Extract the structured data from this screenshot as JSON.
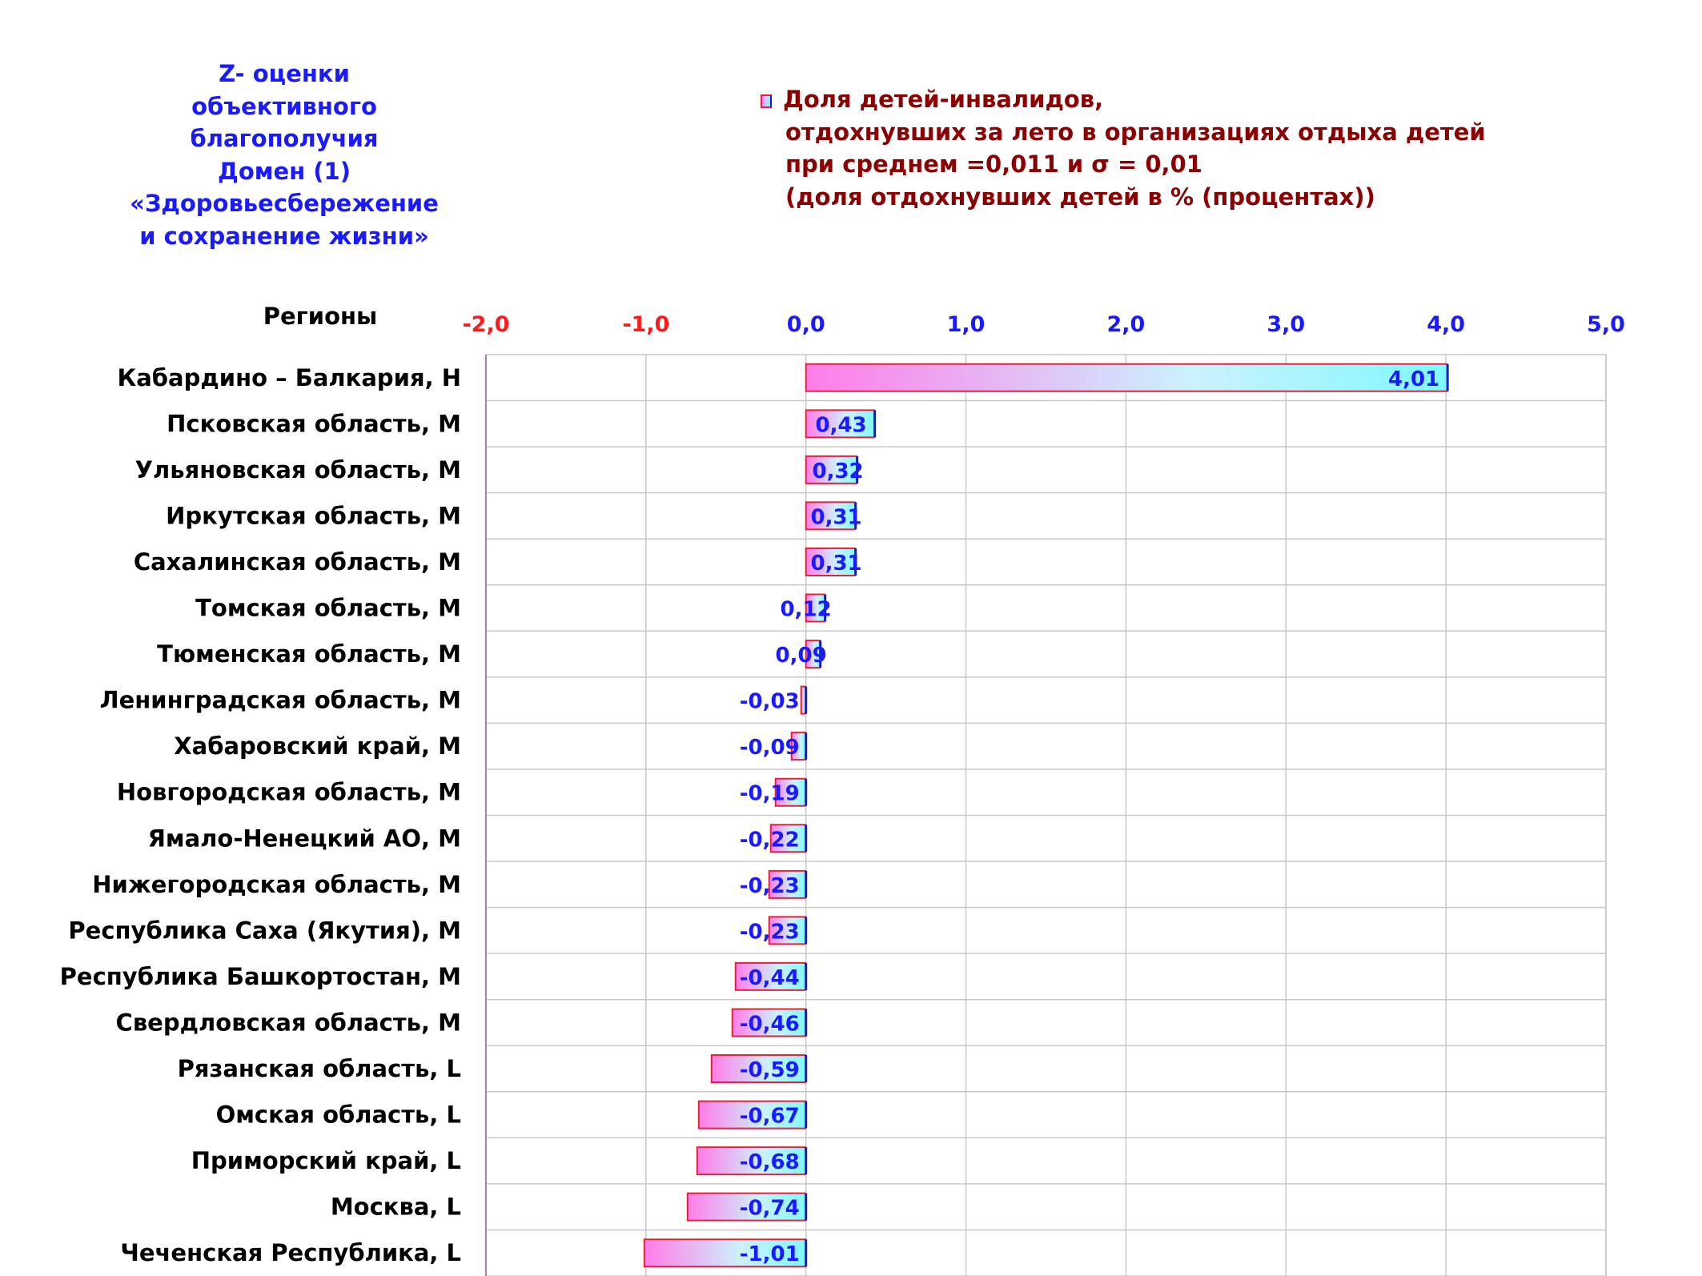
{
  "domain_title": "Z- оценки\nобъективного\nблагополучия\nДомен (1)\n«Здоровьесбережение\nи сохранение жизни»",
  "legend": {
    "line1": "Доля детей-инвалидов,",
    "line2": "отдохнувших за лето в организациях отдыха детей",
    "line3": "при среднем =0,011  и σ = 0,01",
    "line4": "(доля отдохнувших детей в % (процентах))"
  },
  "colors": {
    "axis_negative": "#ff1a1a",
    "axis_positive": "#1a1aff",
    "bar_border_left": "#e8213a",
    "bar_border_right": "#1515c8",
    "gradient_start": "#ff7ce8",
    "gradient_end": "#7ff8ff",
    "value_label": "#1a1aff",
    "grid": "#c8c8c8"
  },
  "chart_data": {
    "type": "bar",
    "orientation": "horizontal",
    "category_header": "Регионы",
    "categories": [
      "Кабардино – Балкария,  Н",
      "Псковская область,  М",
      "Ульяновская область,  М",
      "Иркутская область,  М",
      "Сахалинская область,  М",
      "Томская область,  М",
      "Тюменская область,  М",
      "Ленинградская область,  М",
      "Хабаровский край,  М",
      "Новгородская область,  М",
      "Ямало-Ненецкий АО,  М",
      "Нижегородская область,  М",
      "Республика Саха (Якутия),  М",
      "Республика Башкортостан,  М",
      "Свердловская область,  М",
      "Рязанская область,  L",
      "Омская область,  L",
      "Приморский край,  L",
      "Москва,  L",
      "Чеченская Республика,  L"
    ],
    "values": [
      4.01,
      0.43,
      0.32,
      0.31,
      0.31,
      0.12,
      0.09,
      -0.03,
      -0.09,
      -0.19,
      -0.22,
      -0.23,
      -0.23,
      -0.44,
      -0.46,
      -0.59,
      -0.67,
      -0.68,
      -0.74,
      -1.01
    ],
    "value_labels": [
      "4,01",
      "0,43",
      "0,32",
      "0,31",
      "0,31",
      "0,12",
      "0,09",
      "-0,03",
      "-0,09",
      "-0,19",
      "-0,22",
      "-0,23",
      "-0,23",
      "-0,44",
      "-0,46",
      "-0,59",
      "-0,67",
      "-0,68",
      "-0,74",
      "-1,01"
    ],
    "xlim": [
      -2.0,
      5.0
    ],
    "xticks": [
      -2,
      -1,
      0,
      1,
      2,
      3,
      4,
      5
    ],
    "xtick_labels": [
      "-2,0",
      "-1,0",
      "0,0",
      "1,0",
      "2,0",
      "3,0",
      "4,0",
      "5,0"
    ],
    "xaxis_position": "top",
    "grid": true
  }
}
